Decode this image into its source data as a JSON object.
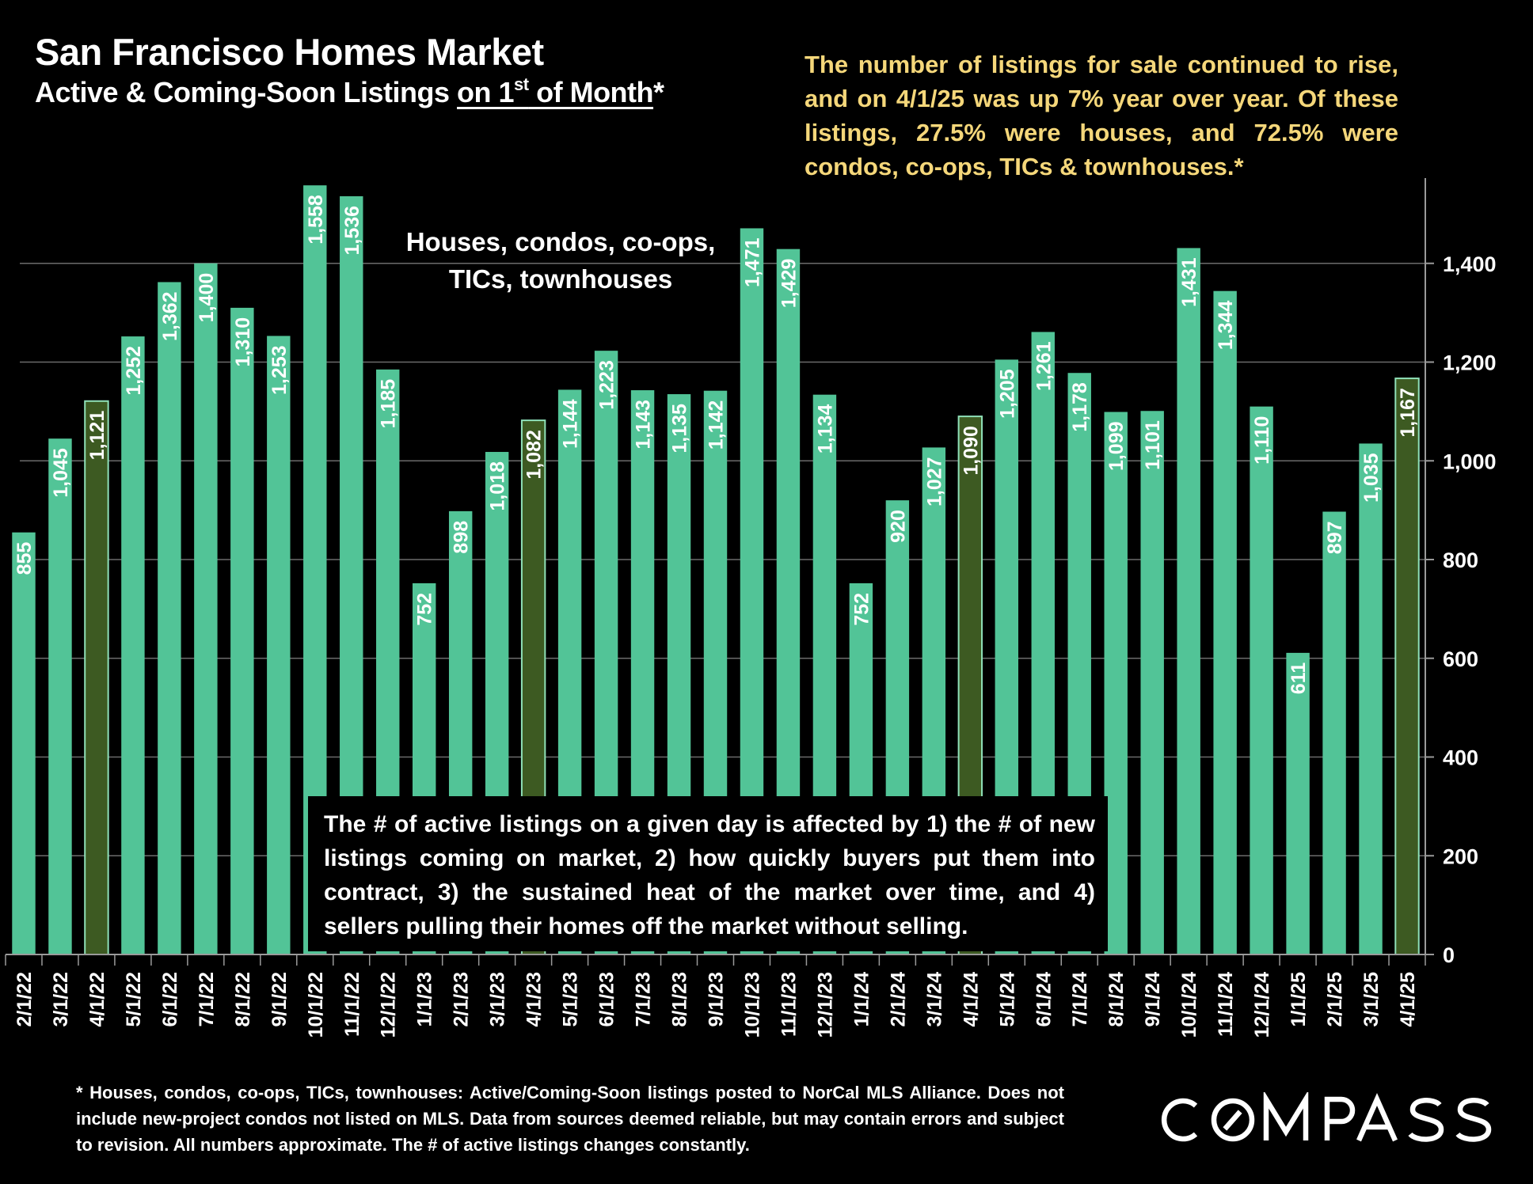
{
  "header": {
    "title": "San Francisco Homes Market",
    "subtitle_pre": "Active & Coming-Soon Listings ",
    "subtitle_ul_a": "on 1",
    "subtitle_sup": "st",
    "subtitle_ul_b": " of Month",
    "subtitle_post": "*"
  },
  "insight": "The number of listings for sale continued to rise, and on 4/1/25 was up 7% year over year. Of these listings, 27.5% were houses, and 72.5% were condos, co-ops, TICs & townhouses.*",
  "series_label_line1": "Houses, condos, co-ops,",
  "series_label_line2": "TICs, townhouses",
  "note": "The # of active listings on a given day is affected by 1) the # of new listings coming on market, 2) how quickly buyers put them into contract, 3) the sustained heat of the market over time, and 4) sellers pulling their homes off the market without selling.",
  "footnote": "* Houses, condos, co-ops, TICs, townhouses: Active/Coming-Soon listings posted to NorCal MLS Alliance. Does not include new-project condos not listed on MLS. Data from sources deemed reliable, but may contain errors and subject to revision. All numbers approximate. The # of active listings changes constantly.",
  "logo": {
    "text": "COMPASS"
  },
  "colors": {
    "bar": "#52C497",
    "highlight_bar": "#3D5A22",
    "highlight_border": "#8FE0B8",
    "grid": "#6B6B6B",
    "insight_text": "#F5D77A"
  },
  "chart_data": {
    "type": "bar",
    "title": "San Francisco Homes Market",
    "subtitle": "Active & Coming-Soon Listings on 1st of Month*",
    "xlabel": "",
    "ylabel": "",
    "ylim": [
      0,
      1600
    ],
    "yticks": [
      0,
      200,
      400,
      600,
      800,
      1000,
      1200,
      1400
    ],
    "ytick_labels": [
      "0",
      "200",
      "400",
      "600",
      "800",
      "1,000",
      "1,200",
      "1,400"
    ],
    "y_axis_position": "right",
    "grid": true,
    "categories": [
      "2/1/22",
      "3/1/22",
      "4/1/22",
      "5/1/22",
      "6/1/22",
      "7/1/22",
      "8/1/22",
      "9/1/22",
      "10/1/22",
      "11/1/22",
      "12/1/22",
      "1/1/23",
      "2/1/23",
      "3/1/23",
      "4/1/23",
      "5/1/23",
      "6/1/23",
      "7/1/23",
      "8/1/23",
      "9/1/23",
      "10/1/23",
      "11/1/23",
      "12/1/23",
      "1/1/24",
      "2/1/24",
      "3/1/24",
      "4/1/24",
      "5/1/24",
      "6/1/24",
      "7/1/24",
      "8/1/24",
      "9/1/24",
      "10/1/24",
      "11/1/24",
      "12/1/24",
      "1/1/25",
      "2/1/25",
      "3/1/25",
      "4/1/25"
    ],
    "values": [
      855,
      1045,
      1121,
      1252,
      1362,
      1400,
      1310,
      1253,
      1558,
      1536,
      1185,
      752,
      898,
      1018,
      1082,
      1144,
      1223,
      1143,
      1135,
      1142,
      1471,
      1429,
      1134,
      752,
      920,
      1027,
      1090,
      1205,
      1261,
      1178,
      1099,
      1101,
      1431,
      1344,
      1110,
      611,
      897,
      1035,
      1167
    ],
    "value_labels": [
      "855",
      "1,045",
      "1,121",
      "1,252",
      "1,362",
      "1,400",
      "1,310",
      "1,253",
      "1,558",
      "1,536",
      "1,185",
      "752",
      "898",
      "1,018",
      "1,082",
      "1,144",
      "1,223",
      "1,143",
      "1,135",
      "1,142",
      "1,471",
      "1,429",
      "1,134",
      "752",
      "920",
      "1,027",
      "1,090",
      "1,205",
      "1,261",
      "1,178",
      "1,099",
      "1,101",
      "1,431",
      "1,344",
      "1,110",
      "611",
      "897",
      "1,035",
      "1,167"
    ],
    "highlighted": [
      "4/1/22",
      "4/1/23",
      "4/1/24",
      "4/1/25"
    ]
  }
}
